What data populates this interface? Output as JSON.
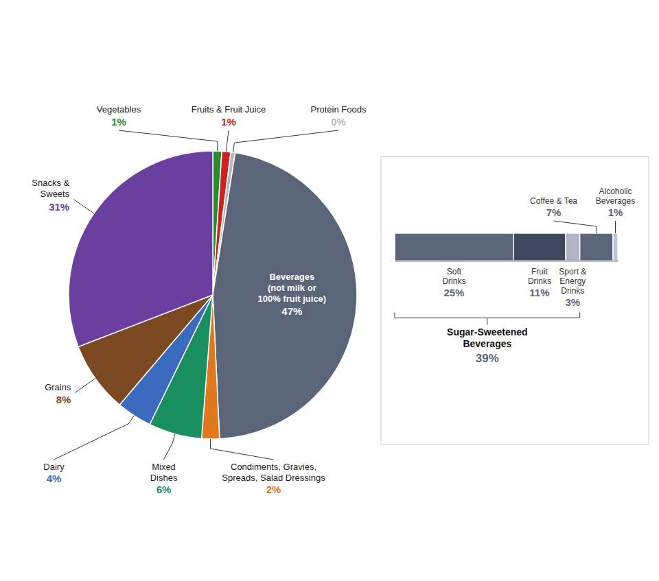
{
  "chart_data": [
    {
      "type": "pie",
      "categories": [
        "Vegetables",
        "Fruits & Fruit Juice",
        "Protein Foods",
        "Beverages\n(not milk or\n100% fruit juice)",
        "Condiments, Gravies,\nSpreads, Salad Dressings",
        "Mixed\nDishes",
        "Dairy",
        "Grains",
        "Snacks &\nSweets"
      ],
      "values": [
        1,
        1,
        0.5,
        47,
        2,
        6,
        4,
        8,
        31
      ],
      "value_labels": [
        "1%",
        "1%",
        "0%",
        "47%",
        "2%",
        "6%",
        "4%",
        "8%",
        "31%"
      ],
      "colors": [
        "#2a8a2e",
        "#cc2222",
        "#b8b8b8",
        "#5b6579",
        "#e07820",
        "#1a9060",
        "#3a6bbf",
        "#7b4a22",
        "#6b3fa0"
      ],
      "data_labels": true
    },
    {
      "type": "bar",
      "orientation": "horizontal",
      "stacked": true,
      "categories": [
        null
      ],
      "xlim": [
        0,
        47
      ],
      "tick_labels": false,
      "data_labels": true,
      "series": [
        {
          "name": "Soft\nDrinks",
          "color": "#5b6579",
          "values": [
            25
          ],
          "value_labels": [
            "25%"
          ]
        },
        {
          "name": "Fruit\nDrinks",
          "color": "#404860",
          "values": [
            11
          ],
          "value_labels": [
            "11%"
          ]
        },
        {
          "name": "Sport &\nEnergy\nDrinks",
          "color": "#b0b5c5",
          "values": [
            3
          ],
          "value_labels": [
            "3%"
          ]
        },
        {
          "name": "Coffee & Tea",
          "color": "#5b6579",
          "values": [
            7
          ],
          "value_labels": [
            "7%"
          ]
        },
        {
          "name": "Alcoholic\nBeverages",
          "color": "#c0c5d5",
          "values": [
            1
          ],
          "value_labels": [
            "1%"
          ]
        }
      ],
      "annotations": [
        {
          "text": "Sugar-Sweetened\nBeverages",
          "value": 39,
          "value_label": "39%"
        }
      ]
    }
  ]
}
